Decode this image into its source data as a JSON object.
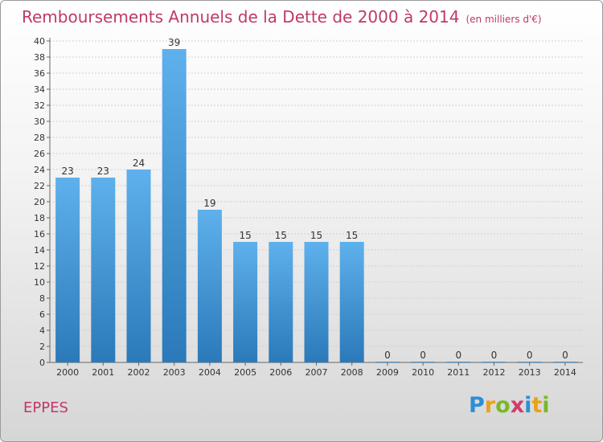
{
  "title": "Remboursements Annuels de la Dette de 2000 à 2014",
  "unit": "(en milliers d'€)",
  "commune": "EPPES",
  "logo": {
    "letters": [
      "P",
      "r",
      "o",
      "x",
      "i",
      "t",
      "i"
    ],
    "colors": [
      "#2b8fd6",
      "#e8a21a",
      "#7ab829",
      "#d23b6a",
      "#2b8fd6",
      "#e8a21a",
      "#7ab829"
    ]
  },
  "colors": {
    "bar_top": "#5eb1ec",
    "bar_bottom": "#2b79b9",
    "title": "#c0386b"
  },
  "chart_data": {
    "type": "bar",
    "title": "Remboursements Annuels de la Dette de 2000 à 2014",
    "categories": [
      "2000",
      "2001",
      "2002",
      "2003",
      "2004",
      "2005",
      "2006",
      "2007",
      "2008",
      "2009",
      "2010",
      "2011",
      "2012",
      "2013",
      "2014"
    ],
    "values": [
      23,
      23,
      24,
      39,
      19,
      15,
      15,
      15,
      15,
      0,
      0,
      0,
      0,
      0,
      0
    ],
    "ylim": [
      0,
      40
    ],
    "yticks": [
      0,
      2,
      4,
      6,
      8,
      10,
      12,
      14,
      16,
      18,
      20,
      22,
      24,
      26,
      28,
      30,
      32,
      34,
      36,
      38,
      40
    ],
    "grid": true
  }
}
